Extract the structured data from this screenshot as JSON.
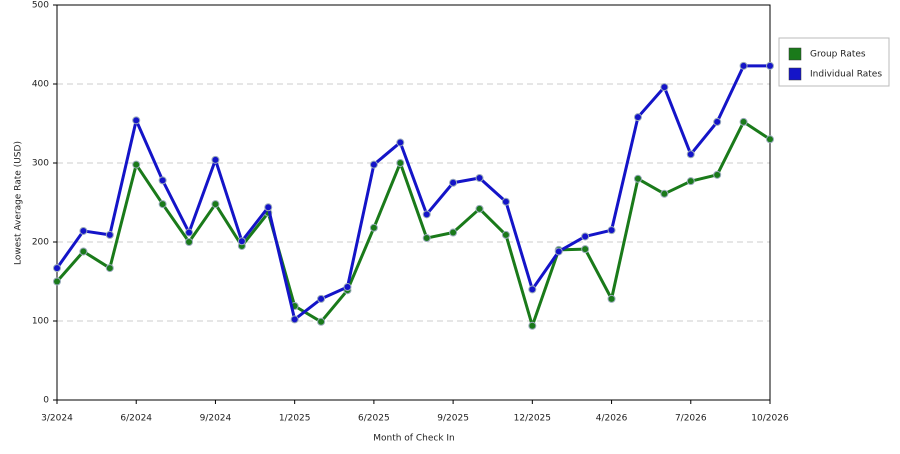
{
  "chart_data": {
    "type": "line",
    "x_label": "Month of Check In",
    "y_label": "Lowest Average Rate (USD)",
    "categories": [
      "3/2024",
      null,
      null,
      "6/2024",
      null,
      null,
      "9/2024",
      null,
      null,
      "1/2025",
      null,
      null,
      "6/2025",
      null,
      null,
      "9/2025",
      null,
      null,
      "12/2025",
      null,
      null,
      "4/2026",
      null,
      null,
      "7/2026",
      null,
      null,
      "10/2026"
    ],
    "series": [
      {
        "name": "Group Rates",
        "color": "#1a7a1a",
        "values": [
          150,
          188,
          167,
          298,
          248,
          200,
          248,
          195,
          237,
          119,
          99,
          139,
          218,
          300,
          205,
          212,
          242,
          209,
          94,
          190,
          191,
          128,
          280,
          261,
          277,
          285,
          352,
          330
        ]
      },
      {
        "name": "Individual Rates",
        "color": "#1414c8",
        "values": [
          167,
          214,
          209,
          354,
          278,
          212,
          304,
          201,
          244,
          102,
          128,
          143,
          298,
          326,
          235,
          275,
          281,
          251,
          140,
          188,
          207,
          215,
          358,
          396,
          311,
          352,
          423,
          423
        ]
      }
    ],
    "ylim": [
      0,
      500
    ],
    "yticks": [
      0,
      100,
      200,
      300,
      400,
      500
    ],
    "grid": true,
    "legend": "right"
  }
}
